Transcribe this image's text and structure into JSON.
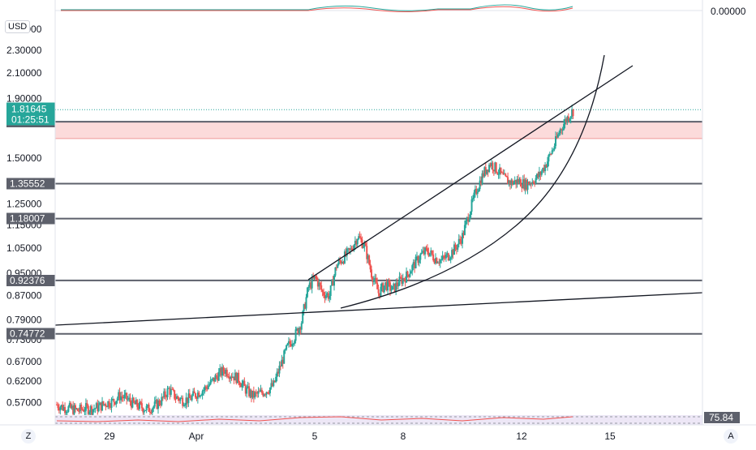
{
  "currency_label": "USD",
  "top_indicator_value": "0.00000",
  "rsi_value": "75.84",
  "bottom_left_button": "Z",
  "bottom_right_button": "A",
  "price_tag": {
    "value": "1.81645",
    "countdown": "01:25:51",
    "color": "#26a69a"
  },
  "colors": {
    "up": "#26a69a",
    "down": "#ef5350",
    "line": "#131722",
    "hline": "#5d606b",
    "zone": "#fbd5d5",
    "grid": "#e0e3eb"
  },
  "chart_data": {
    "type": "candlestick",
    "title": "",
    "xlabel": "",
    "ylabel": "",
    "y_scale": "log",
    "ylim": [
      0.535,
      2.63
    ],
    "y_ticks": [
      "2.50000",
      "2.30000",
      "2.10000",
      "1.90000",
      "1.50000",
      "1.25000",
      "1.15000",
      "1.05000",
      "0.95000",
      "0.87000",
      "0.79000",
      "0.73000",
      "0.67000",
      "0.62000",
      "0.57000"
    ],
    "x_ticks": [
      "29",
      "Apr",
      "5",
      "8",
      "12",
      "15"
    ],
    "horizontal_levels": [
      "1.73162",
      "1.35552",
      "1.18007",
      "0.92376",
      "0.74772"
    ],
    "resistance_zone": [
      1.62,
      1.73162
    ],
    "price_path": [
      0.565,
      0.558,
      0.556,
      0.552,
      0.557,
      0.555,
      0.56,
      0.568,
      0.572,
      0.585,
      0.578,
      0.566,
      0.56,
      0.555,
      0.562,
      0.575,
      0.6,
      0.582,
      0.575,
      0.578,
      0.59,
      0.6,
      0.615,
      0.635,
      0.648,
      0.636,
      0.625,
      0.6,
      0.585,
      0.59,
      0.598,
      0.61,
      0.66,
      0.71,
      0.74,
      0.785,
      0.9,
      0.935,
      0.88,
      0.87,
      0.98,
      1.01,
      1.04,
      1.1,
      1.06,
      0.95,
      0.88,
      0.91,
      0.89,
      0.92,
      0.94,
      0.98,
      1.02,
      1.04,
      1.01,
      1.0,
      1.02,
      1.05,
      1.1,
      1.21,
      1.32,
      1.41,
      1.47,
      1.43,
      1.38,
      1.36,
      1.37,
      1.35,
      1.37,
      1.4,
      1.47,
      1.56,
      1.68,
      1.76,
      1.82
    ]
  }
}
